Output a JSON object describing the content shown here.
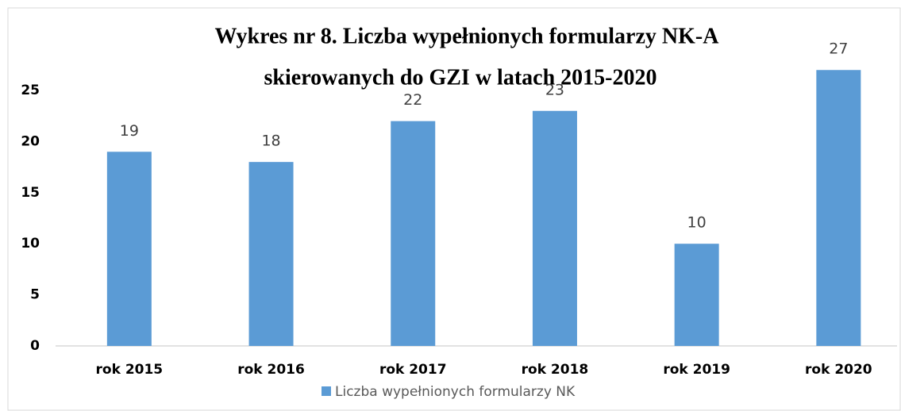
{
  "chart_data": {
    "type": "bar",
    "title": [
      "Wykres nr 8. Liczba wypełnionych formularzy NK-A",
      "skierowanych do GZI w latach 2015-2020"
    ],
    "categories": [
      "rok 2015",
      "rok 2016",
      "rok 2017",
      "rok 2018",
      "rok 2019",
      "rok 2020"
    ],
    "series": [
      {
        "name": "Liczba wypełnionych formularzy NK",
        "color": "#5b9bd5",
        "values": [
          19,
          18,
          22,
          23,
          10,
          27
        ]
      }
    ],
    "ylim": [
      0,
      25
    ],
    "yticks": [
      0,
      5,
      10,
      15,
      20,
      25
    ],
    "grid": false,
    "legend": "bottom"
  }
}
